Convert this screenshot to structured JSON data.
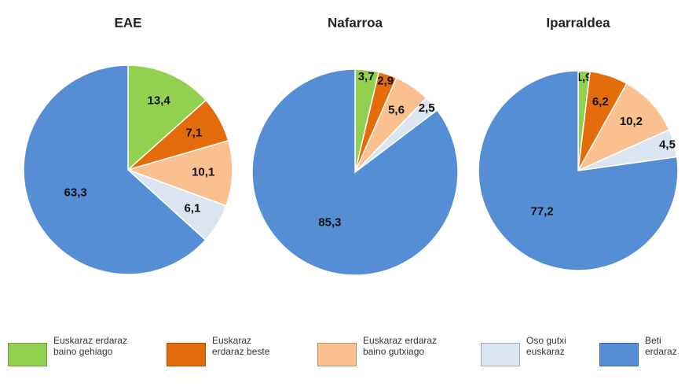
{
  "chart_data": [
    {
      "type": "pie",
      "title": "EAE",
      "values": [
        13.4,
        7.1,
        10.1,
        6.1,
        63.3
      ],
      "value_labels": [
        "13,4",
        "7,1",
        "10,1",
        "6,1",
        "63,3"
      ]
    },
    {
      "type": "pie",
      "title": "Nafarroa",
      "values": [
        3.7,
        2.9,
        5.6,
        2.5,
        85.3
      ],
      "value_labels": [
        "3,7",
        "2,9",
        "5,6",
        "2,5",
        "85,3"
      ]
    },
    {
      "type": "pie",
      "title": "Iparraldea",
      "values": [
        1.9,
        6.2,
        10.2,
        4.5,
        77.2
      ],
      "value_labels": [
        "1,9",
        "6,2",
        "10,2",
        "4,5",
        "77,2"
      ]
    }
  ],
  "legend": {
    "categories": [
      "Euskaraz erdaraz baino gehiago",
      "Euskaraz erdaraz beste",
      "Euskaraz erdaraz baino gutxiago",
      "Oso gutxi euskaraz",
      "Beti erdaraz"
    ],
    "colors": [
      "#92d050",
      "#e46c0a",
      "#fac090",
      "#dbe5f1",
      "#558ed5"
    ]
  }
}
